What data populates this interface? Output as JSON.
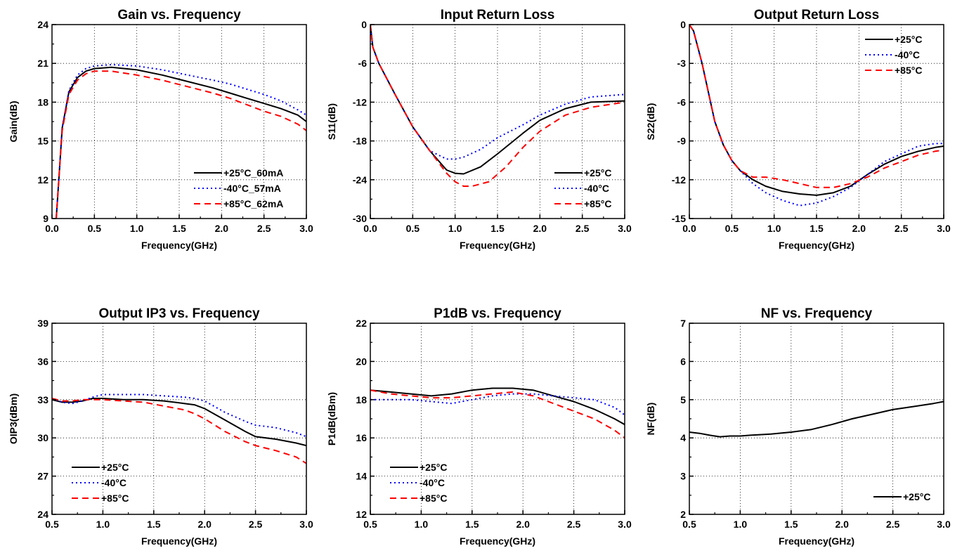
{
  "colors": {
    "s25": "#000000",
    "s40": "#0000ff",
    "s85": "#ff0000"
  },
  "chart_data": [
    {
      "type": "line",
      "title": "Gain vs. Frequency",
      "xlabel": "Frequency(GHz)",
      "ylabel": "Gain(dB)",
      "xlim": [
        0,
        3
      ],
      "ylim": [
        9,
        24
      ],
      "xticks": [
        "0.0",
        "0.5",
        "1.0",
        "1.5",
        "2.0",
        "2.5",
        "3.0"
      ],
      "yticks": [
        "9",
        "12",
        "15",
        "18",
        "21",
        "24"
      ],
      "grid": true,
      "legend_position": "bottom-right",
      "series": [
        {
          "name": "+25°C_60mA",
          "style": "solid",
          "x": [
            0.05,
            0.08,
            0.12,
            0.2,
            0.3,
            0.4,
            0.5,
            0.7,
            1.0,
            1.3,
            1.6,
            1.9,
            2.1,
            2.3,
            2.5,
            2.7,
            2.9,
            3.0
          ],
          "y": [
            9,
            12,
            16,
            18.8,
            19.9,
            20.4,
            20.6,
            20.7,
            20.5,
            20.1,
            19.6,
            19.1,
            18.7,
            18.3,
            17.9,
            17.5,
            17.0,
            16.5
          ]
        },
        {
          "name": "-40°C_57mA",
          "style": "dotted",
          "x": [
            0.05,
            0.08,
            0.12,
            0.2,
            0.3,
            0.4,
            0.5,
            0.7,
            1.0,
            1.3,
            1.6,
            1.9,
            2.1,
            2.3,
            2.5,
            2.7,
            2.9,
            3.0
          ],
          "y": [
            9,
            12,
            16,
            18.9,
            20.1,
            20.6,
            20.8,
            20.9,
            20.8,
            20.5,
            20.1,
            19.7,
            19.4,
            19.0,
            18.6,
            18.1,
            17.4,
            17.0
          ]
        },
        {
          "name": "+85°C_62mA",
          "style": "dashed",
          "x": [
            0.05,
            0.08,
            0.12,
            0.2,
            0.3,
            0.4,
            0.5,
            0.7,
            1.0,
            1.3,
            1.6,
            1.9,
            2.1,
            2.3,
            2.5,
            2.7,
            2.9,
            3.0
          ],
          "y": [
            9,
            12,
            15.8,
            18.6,
            19.7,
            20.2,
            20.4,
            20.4,
            20.1,
            19.7,
            19.2,
            18.7,
            18.3,
            17.8,
            17.3,
            16.9,
            16.3,
            15.8
          ]
        }
      ]
    },
    {
      "type": "line",
      "title": "Input Return Loss",
      "xlabel": "Frequency(GHz)",
      "ylabel": "S11(dB)",
      "xlim": [
        0,
        3
      ],
      "ylim": [
        -30,
        0
      ],
      "xticks": [
        "0.0",
        "0.5",
        "1.0",
        "1.5",
        "2.0",
        "2.5",
        "3.0"
      ],
      "yticks": [
        "-30",
        "-24",
        "-18",
        "-12",
        "-6",
        "0"
      ],
      "grid": true,
      "legend_position": "bottom-right",
      "series": [
        {
          "name": "+25°C",
          "style": "solid",
          "x": [
            0.0,
            0.03,
            0.1,
            0.3,
            0.5,
            0.7,
            0.9,
            1.0,
            1.1,
            1.3,
            1.5,
            1.8,
            2.0,
            2.3,
            2.6,
            3.0
          ],
          "y": [
            0,
            -3.5,
            -6,
            -11,
            -15.8,
            -19.5,
            -22.5,
            -23,
            -23.1,
            -22,
            -20,
            -16.8,
            -14.8,
            -13,
            -12,
            -11.8
          ]
        },
        {
          "name": "-40°C",
          "style": "dotted",
          "x": [
            0.0,
            0.03,
            0.1,
            0.3,
            0.5,
            0.7,
            0.9,
            1.0,
            1.1,
            1.3,
            1.5,
            1.8,
            2.0,
            2.3,
            2.6,
            3.0
          ],
          "y": [
            0,
            -3.5,
            -6,
            -11,
            -15.8,
            -19.5,
            -20.8,
            -20.8,
            -20.5,
            -19.3,
            -17.5,
            -15.5,
            -14,
            -12.3,
            -11.2,
            -10.8
          ]
        },
        {
          "name": "+85°C",
          "style": "dashed",
          "x": [
            0.0,
            0.03,
            0.1,
            0.3,
            0.5,
            0.7,
            0.9,
            1.0,
            1.1,
            1.2,
            1.4,
            1.6,
            1.8,
            2.0,
            2.3,
            2.6,
            3.0
          ],
          "y": [
            0,
            -3.5,
            -6,
            -11,
            -15.8,
            -19.5,
            -23,
            -24.3,
            -25,
            -25,
            -24.3,
            -22,
            -19,
            -16.5,
            -14,
            -12.8,
            -12
          ]
        }
      ]
    },
    {
      "type": "line",
      "title": "Output Return Loss",
      "xlabel": "Frequency(GHz)",
      "ylabel": "S22(dB)",
      "xlim": [
        0,
        3
      ],
      "ylim": [
        -15,
        0
      ],
      "xticks": [
        "0.0",
        "0.5",
        "1.0",
        "1.5",
        "2.0",
        "2.5",
        "3.0"
      ],
      "yticks": [
        "-15",
        "-12",
        "-9",
        "-6",
        "-3",
        "0"
      ],
      "grid": true,
      "legend_position": "top-right",
      "series": [
        {
          "name": "+25°C",
          "style": "solid",
          "x": [
            0.0,
            0.05,
            0.15,
            0.3,
            0.4,
            0.5,
            0.6,
            0.75,
            0.9,
            1.1,
            1.3,
            1.5,
            1.7,
            1.9,
            2.1,
            2.3,
            2.5,
            2.7,
            2.9,
            3.0
          ],
          "y": [
            0,
            -0.5,
            -3,
            -7.5,
            -9.3,
            -10.5,
            -11.3,
            -12,
            -12.5,
            -12.9,
            -13.1,
            -13.2,
            -13.0,
            -12.5,
            -11.6,
            -10.8,
            -10.2,
            -9.8,
            -9.5,
            -9.4
          ]
        },
        {
          "name": "-40°C",
          "style": "dotted",
          "x": [
            0.0,
            0.05,
            0.15,
            0.3,
            0.4,
            0.5,
            0.6,
            0.75,
            0.9,
            1.1,
            1.3,
            1.5,
            1.7,
            1.9,
            2.1,
            2.3,
            2.5,
            2.7,
            2.9,
            3.0
          ],
          "y": [
            0,
            -0.5,
            -3,
            -7.5,
            -9.3,
            -10.5,
            -11.3,
            -12.3,
            -13,
            -13.6,
            -14,
            -13.8,
            -13.3,
            -12.6,
            -11.6,
            -10.6,
            -10,
            -9.4,
            -9.2,
            -9.2
          ]
        },
        {
          "name": "+85°C",
          "style": "dashed",
          "x": [
            0.0,
            0.05,
            0.15,
            0.3,
            0.4,
            0.5,
            0.6,
            0.75,
            0.9,
            1.1,
            1.3,
            1.5,
            1.7,
            1.9,
            2.1,
            2.3,
            2.5,
            2.7,
            2.9,
            3.0
          ],
          "y": [
            0,
            -0.5,
            -3,
            -7.5,
            -9.3,
            -10.5,
            -11.3,
            -11.8,
            -11.8,
            -12,
            -12.3,
            -12.6,
            -12.6,
            -12.3,
            -11.8,
            -11.1,
            -10.6,
            -10.1,
            -9.8,
            -9.7
          ]
        }
      ]
    },
    {
      "type": "line",
      "title": "Output IP3 vs. Frequency",
      "xlabel": "Frequency(GHz)",
      "ylabel": "OIP3(dBm)",
      "xlim": [
        0.5,
        3
      ],
      "ylim": [
        24,
        39
      ],
      "xticks": [
        "0.5",
        "1.0",
        "1.5",
        "2.0",
        "2.5",
        "3.0"
      ],
      "yticks": [
        "24",
        "27",
        "30",
        "33",
        "36",
        "39"
      ],
      "grid": true,
      "legend_position": "bottom-left",
      "series": [
        {
          "name": "+25°C",
          "style": "solid",
          "x": [
            0.5,
            0.6,
            0.7,
            0.8,
            0.9,
            1.0,
            1.2,
            1.4,
            1.6,
            1.8,
            1.9,
            2.0,
            2.2,
            2.4,
            2.5,
            2.7,
            2.9,
            3.0
          ],
          "y": [
            33.0,
            32.8,
            32.8,
            32.9,
            33.1,
            33.1,
            33.0,
            33.0,
            32.9,
            32.7,
            32.6,
            32.3,
            31.4,
            30.5,
            30.1,
            29.9,
            29.6,
            29.4
          ]
        },
        {
          "name": "-40°C",
          "style": "dotted",
          "x": [
            0.5,
            0.6,
            0.7,
            0.8,
            0.9,
            1.0,
            1.2,
            1.4,
            1.6,
            1.8,
            1.9,
            2.0,
            2.2,
            2.4,
            2.5,
            2.7,
            2.9,
            3.0
          ],
          "y": [
            33.1,
            32.8,
            32.7,
            32.9,
            33.2,
            33.4,
            33.4,
            33.4,
            33.3,
            33.2,
            33.1,
            32.9,
            32.0,
            31.3,
            31.0,
            30.8,
            30.4,
            30.1
          ]
        },
        {
          "name": "+85°C",
          "style": "dashed",
          "x": [
            0.5,
            0.6,
            0.7,
            0.8,
            0.9,
            1.0,
            1.2,
            1.4,
            1.6,
            1.8,
            1.9,
            2.0,
            2.2,
            2.4,
            2.5,
            2.7,
            2.9,
            3.0
          ],
          "y": [
            33.1,
            32.9,
            32.9,
            33.0,
            33.0,
            33.0,
            32.9,
            32.8,
            32.5,
            32.2,
            31.9,
            31.5,
            30.5,
            29.7,
            29.4,
            29.0,
            28.5,
            28.0
          ]
        }
      ]
    },
    {
      "type": "line",
      "title": "P1dB vs. Frequency",
      "xlabel": "Frequency(GHz)",
      "ylabel": "P1dB(dBm)",
      "xlim": [
        0.5,
        3
      ],
      "ylim": [
        12,
        22
      ],
      "xticks": [
        "0.5",
        "1.0",
        "1.5",
        "2.0",
        "2.5",
        "3.0"
      ],
      "yticks": [
        "12",
        "14",
        "16",
        "18",
        "20",
        "22"
      ],
      "grid": true,
      "legend_position": "bottom-left",
      "series": [
        {
          "name": "+25°C",
          "style": "solid",
          "x": [
            0.5,
            0.7,
            0.9,
            1.1,
            1.3,
            1.5,
            1.7,
            1.9,
            2.1,
            2.3,
            2.5,
            2.7,
            2.9,
            3.0
          ],
          "y": [
            18.5,
            18.4,
            18.3,
            18.2,
            18.3,
            18.5,
            18.6,
            18.6,
            18.5,
            18.2,
            17.9,
            17.5,
            17.0,
            16.7
          ]
        },
        {
          "name": "-40°C",
          "style": "dotted",
          "x": [
            0.5,
            0.7,
            0.9,
            1.1,
            1.3,
            1.5,
            1.7,
            1.9,
            2.1,
            2.3,
            2.5,
            2.7,
            2.9,
            3.0
          ],
          "y": [
            18.0,
            18.0,
            18.0,
            17.9,
            17.8,
            18.0,
            18.2,
            18.3,
            18.3,
            18.2,
            18.1,
            18.0,
            17.6,
            17.2
          ]
        },
        {
          "name": "+85°C",
          "style": "dashed",
          "x": [
            0.5,
            0.7,
            0.9,
            1.1,
            1.3,
            1.5,
            1.7,
            1.9,
            2.1,
            2.3,
            2.5,
            2.7,
            2.9,
            3.0
          ],
          "y": [
            18.5,
            18.3,
            18.2,
            18.1,
            18.1,
            18.2,
            18.3,
            18.4,
            18.2,
            17.8,
            17.4,
            17.0,
            16.4,
            16.0
          ]
        }
      ]
    },
    {
      "type": "line",
      "title": "NF vs. Frequency",
      "xlabel": "Frequency(GHz)",
      "ylabel": "NF(dB)",
      "xlim": [
        0.5,
        3
      ],
      "ylim": [
        2,
        7
      ],
      "xticks": [
        "0.5",
        "1.0",
        "1.5",
        "2.0",
        "2.5",
        "3.0"
      ],
      "yticks": [
        "2",
        "3",
        "4",
        "5",
        "6",
        "7"
      ],
      "grid": true,
      "legend_position": "bottom-right",
      "series": [
        {
          "name": "+25°C",
          "style": "solid",
          "x": [
            0.5,
            0.6,
            0.7,
            0.8,
            0.9,
            1.0,
            1.1,
            1.3,
            1.5,
            1.7,
            1.9,
            2.1,
            2.3,
            2.5,
            2.7,
            2.9,
            3.0
          ],
          "y": [
            4.15,
            4.12,
            4.07,
            4.03,
            4.05,
            4.05,
            4.07,
            4.1,
            4.15,
            4.22,
            4.35,
            4.5,
            4.62,
            4.74,
            4.82,
            4.9,
            4.95
          ]
        }
      ]
    }
  ]
}
